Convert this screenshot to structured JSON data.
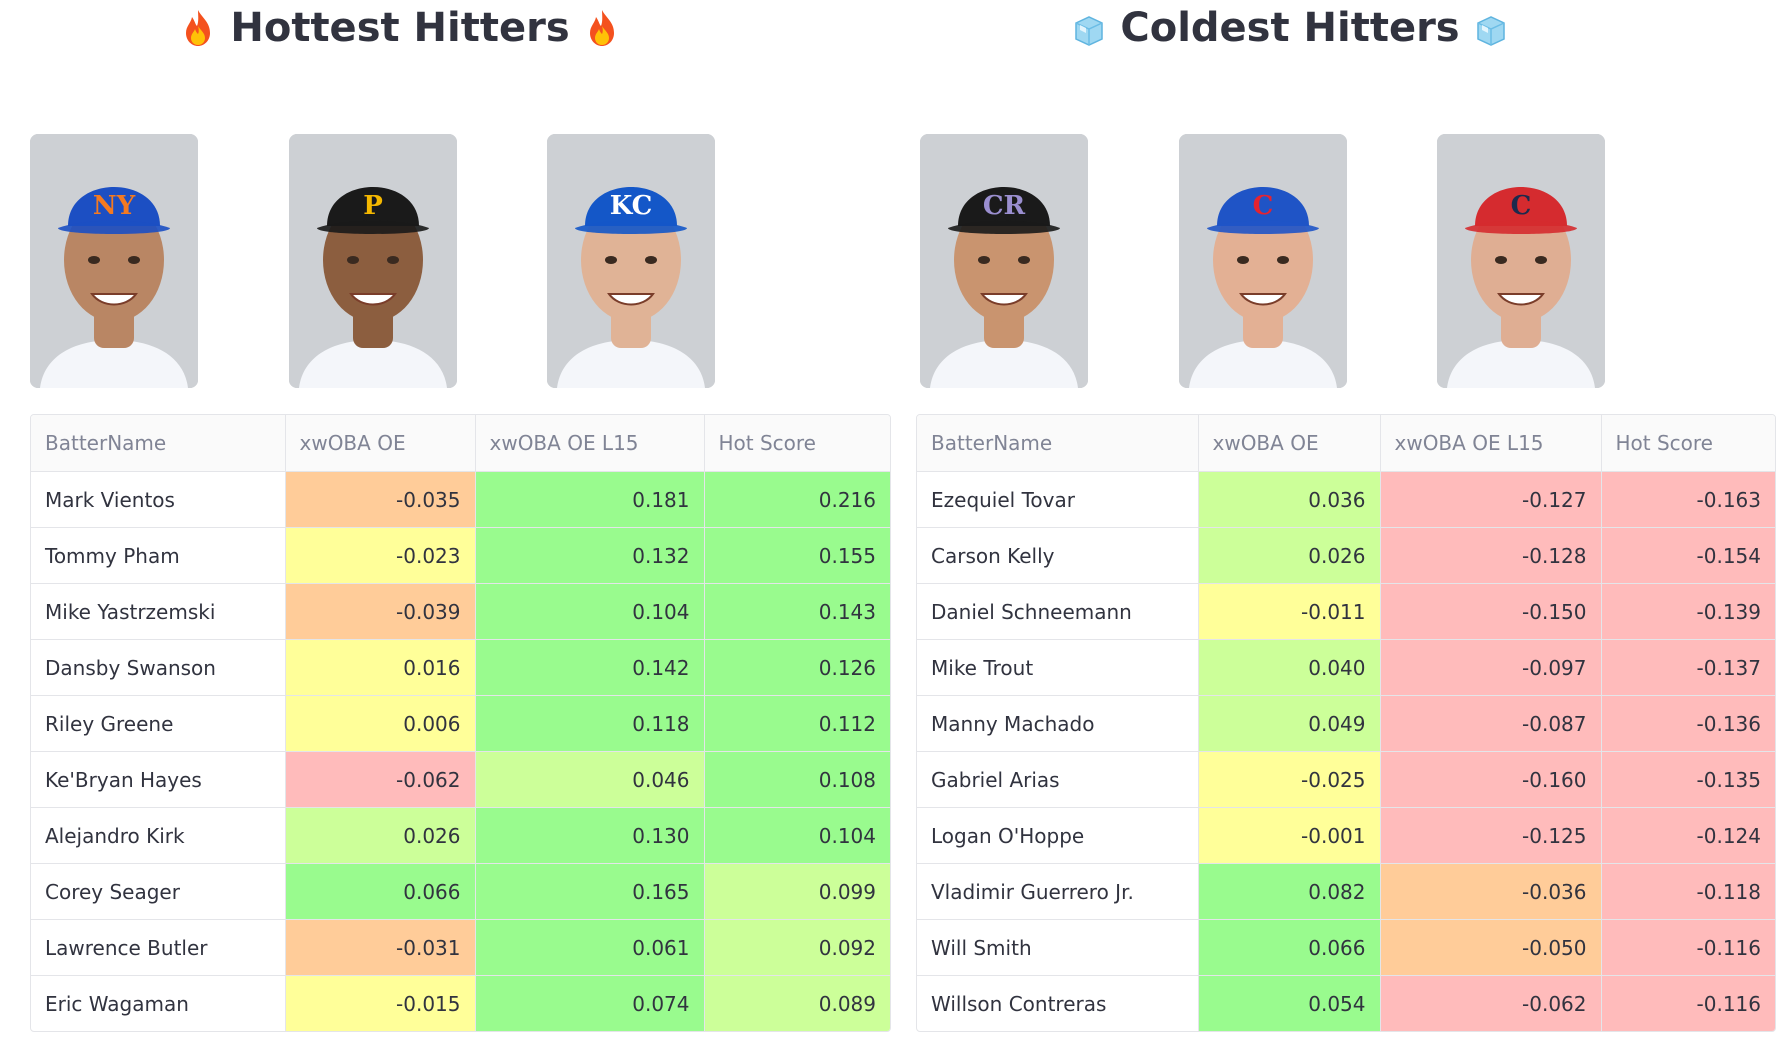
{
  "colors": {
    "green_strong": "#99fb8e",
    "green_light": "#ccff99",
    "yellow": "#ffff99",
    "orange": "#ffcc99",
    "red": "#ffbbbb"
  },
  "hot": {
    "title": "Hottest Hitters",
    "icon": "fire-icon",
    "players": [
      {
        "name": "Mets hitter",
        "cap": "#1c4fc3",
        "logo": "NY",
        "logo_color": "#f47a20",
        "skin": "#b98664"
      },
      {
        "name": "Pirates hitter",
        "cap": "#1a1a1a",
        "logo": "P",
        "logo_color": "#f5b800",
        "skin": "#8c5e3f"
      },
      {
        "name": "Royals hitter",
        "cap": "#1457c8",
        "logo": "KC",
        "logo_color": "#ffffff",
        "skin": "#e0b396"
      }
    ],
    "columns": [
      "BatterName",
      "xwOBA OE",
      "xwOBA OE L15",
      "Hot Score"
    ],
    "rows": [
      {
        "name": "Mark Vientos",
        "oe": "-0.035",
        "l15": "0.181",
        "hot": "0.216",
        "c1": "orange",
        "c2": "green_strong",
        "c3": "green_strong"
      },
      {
        "name": "Tommy Pham",
        "oe": "-0.023",
        "l15": "0.132",
        "hot": "0.155",
        "c1": "yellow",
        "c2": "green_strong",
        "c3": "green_strong"
      },
      {
        "name": "Mike Yastrzemski",
        "oe": "-0.039",
        "l15": "0.104",
        "hot": "0.143",
        "c1": "orange",
        "c2": "green_strong",
        "c3": "green_strong"
      },
      {
        "name": "Dansby Swanson",
        "oe": "0.016",
        "l15": "0.142",
        "hot": "0.126",
        "c1": "yellow",
        "c2": "green_strong",
        "c3": "green_strong"
      },
      {
        "name": "Riley Greene",
        "oe": "0.006",
        "l15": "0.118",
        "hot": "0.112",
        "c1": "yellow",
        "c2": "green_strong",
        "c3": "green_strong"
      },
      {
        "name": "Ke'Bryan Hayes",
        "oe": "-0.062",
        "l15": "0.046",
        "hot": "0.108",
        "c1": "red",
        "c2": "green_light",
        "c3": "green_strong"
      },
      {
        "name": "Alejandro Kirk",
        "oe": "0.026",
        "l15": "0.130",
        "hot": "0.104",
        "c1": "green_light",
        "c2": "green_strong",
        "c3": "green_strong"
      },
      {
        "name": "Corey Seager",
        "oe": "0.066",
        "l15": "0.165",
        "hot": "0.099",
        "c1": "green_strong",
        "c2": "green_strong",
        "c3": "green_light"
      },
      {
        "name": "Lawrence Butler",
        "oe": "-0.031",
        "l15": "0.061",
        "hot": "0.092",
        "c1": "orange",
        "c2": "green_strong",
        "c3": "green_light"
      },
      {
        "name": "Eric Wagaman",
        "oe": "-0.015",
        "l15": "0.074",
        "hot": "0.089",
        "c1": "yellow",
        "c2": "green_strong",
        "c3": "green_light"
      }
    ]
  },
  "cold": {
    "title": "Coldest Hitters",
    "icon": "ice-cube-icon",
    "players": [
      {
        "name": "Rockies hitter",
        "cap": "#1a1a1a",
        "logo": "CR",
        "logo_color": "#9b8fd0",
        "skin": "#c9946f"
      },
      {
        "name": "Cubs hitter",
        "cap": "#1f54c6",
        "logo": "C",
        "logo_color": "#e52330",
        "skin": "#e3b094"
      },
      {
        "name": "Guardians hitter",
        "cap": "#d52b2f",
        "logo": "C",
        "logo_color": "#1d2a4d",
        "skin": "#dfae93"
      }
    ],
    "columns": [
      "BatterName",
      "xwOBA OE",
      "xwOBA OE L15",
      "Hot Score"
    ],
    "rows": [
      {
        "name": "Ezequiel Tovar",
        "oe": "0.036",
        "l15": "-0.127",
        "hot": "-0.163",
        "c1": "green_light",
        "c2": "red",
        "c3": "red"
      },
      {
        "name": "Carson Kelly",
        "oe": "0.026",
        "l15": "-0.128",
        "hot": "-0.154",
        "c1": "green_light",
        "c2": "red",
        "c3": "red"
      },
      {
        "name": "Daniel Schneemann",
        "oe": "-0.011",
        "l15": "-0.150",
        "hot": "-0.139",
        "c1": "yellow",
        "c2": "red",
        "c3": "red"
      },
      {
        "name": "Mike Trout",
        "oe": "0.040",
        "l15": "-0.097",
        "hot": "-0.137",
        "c1": "green_light",
        "c2": "red",
        "c3": "red"
      },
      {
        "name": "Manny Machado",
        "oe": "0.049",
        "l15": "-0.087",
        "hot": "-0.136",
        "c1": "green_light",
        "c2": "red",
        "c3": "red"
      },
      {
        "name": "Gabriel Arias",
        "oe": "-0.025",
        "l15": "-0.160",
        "hot": "-0.135",
        "c1": "yellow",
        "c2": "red",
        "c3": "red"
      },
      {
        "name": "Logan O'Hoppe",
        "oe": "-0.001",
        "l15": "-0.125",
        "hot": "-0.124",
        "c1": "yellow",
        "c2": "red",
        "c3": "red"
      },
      {
        "name": "Vladimir Guerrero Jr.",
        "oe": "0.082",
        "l15": "-0.036",
        "hot": "-0.118",
        "c1": "green_strong",
        "c2": "orange",
        "c3": "red"
      },
      {
        "name": "Will Smith",
        "oe": "0.066",
        "l15": "-0.050",
        "hot": "-0.116",
        "c1": "green_strong",
        "c2": "orange",
        "c3": "red"
      },
      {
        "name": "Willson Contreras",
        "oe": "0.054",
        "l15": "-0.062",
        "hot": "-0.116",
        "c1": "green_strong",
        "c2": "red",
        "c3": "red"
      }
    ]
  }
}
